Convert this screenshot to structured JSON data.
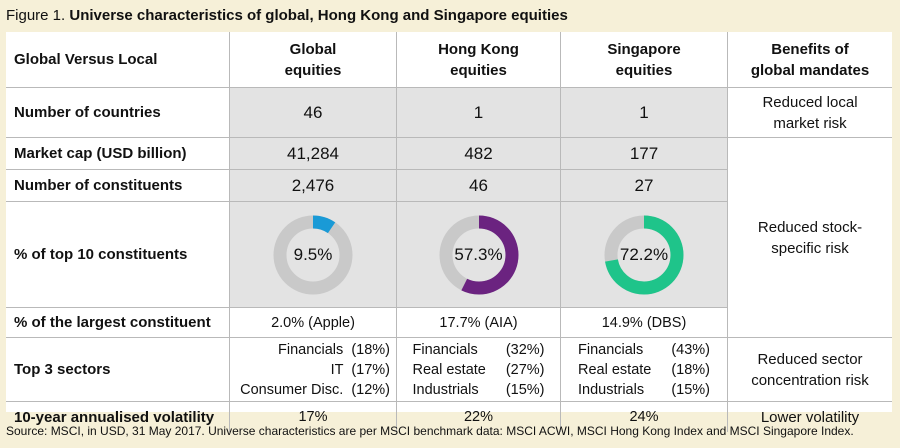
{
  "figure": {
    "prefix": "Figure 1.",
    "title": "Universe characteristics of global, Hong Kong and Singapore equities"
  },
  "header": {
    "col0": "Global Versus Local",
    "col1_line1": "Global",
    "col1_line2": "equities",
    "col2_line1": "Hong Kong",
    "col2_line2": "equities",
    "col3_line1": "Singapore",
    "col3_line2": "equities",
    "col4_line1": "Benefits of",
    "col4_line2": "global mandates"
  },
  "rows": {
    "countries": {
      "label": "Number of countries",
      "global": "46",
      "hk": "1",
      "sg": "1"
    },
    "marketcap": {
      "label": "Market cap (USD billion)",
      "global": "41,284",
      "hk": "482",
      "sg": "177"
    },
    "constituents": {
      "label": "Number of constituents",
      "global": "2,476",
      "hk": "46",
      "sg": "27"
    },
    "top10": {
      "label": "% of top 10 constituents",
      "global": "9.5%",
      "hk": "57.3%",
      "sg": "72.2%"
    },
    "largest": {
      "label": "% of the largest constituent",
      "global": "2.0% (Apple)",
      "hk": "17.7% (AIA)",
      "sg": "14.9% (DBS)"
    },
    "sectors": {
      "label": "Top 3 sectors",
      "global": [
        "Financials  (18%)",
        "IT  (17%)",
        "Consumer Disc.  (12%)"
      ],
      "hk": [
        [
          "Financials",
          "(32%)"
        ],
        [
          "Real estate",
          "(27%)"
        ],
        [
          "Industrials",
          "(15%)"
        ]
      ],
      "sg": [
        [
          "Financials",
          "(43%)"
        ],
        [
          "Real estate",
          "(18%)"
        ],
        [
          "Industrials",
          "(15%)"
        ]
      ]
    },
    "volatility": {
      "label": "10-year annualised volatility",
      "global": "17%",
      "hk": "22%",
      "sg": "24%"
    }
  },
  "benefits": {
    "local_line1": "Reduced local",
    "local_line2": "market risk",
    "stock_line1": "Reduced stock-",
    "stock_line2": "specific risk",
    "sector_line1": "Reduced sector",
    "sector_line2": "concentration risk",
    "volatility": "Lower volatility"
  },
  "donuts": [
    {
      "key": "global",
      "fraction": 0.095,
      "color": "#1a9ad6"
    },
    {
      "key": "hk",
      "fraction": 0.573,
      "color": "#6b2380"
    },
    {
      "key": "sg",
      "fraction": 0.722,
      "color": "#1fc48a"
    }
  ],
  "colors": {
    "donut_track": "#c9c9c9",
    "gray_fill": "#e3e3e3",
    "background": "#f6f0d8"
  },
  "source": "Source: MSCI, in USD, 31 May 2017. Universe characteristics are per MSCI benchmark data: MSCI ACWI, MSCI Hong Kong Index and MSCI Singapore Index."
}
